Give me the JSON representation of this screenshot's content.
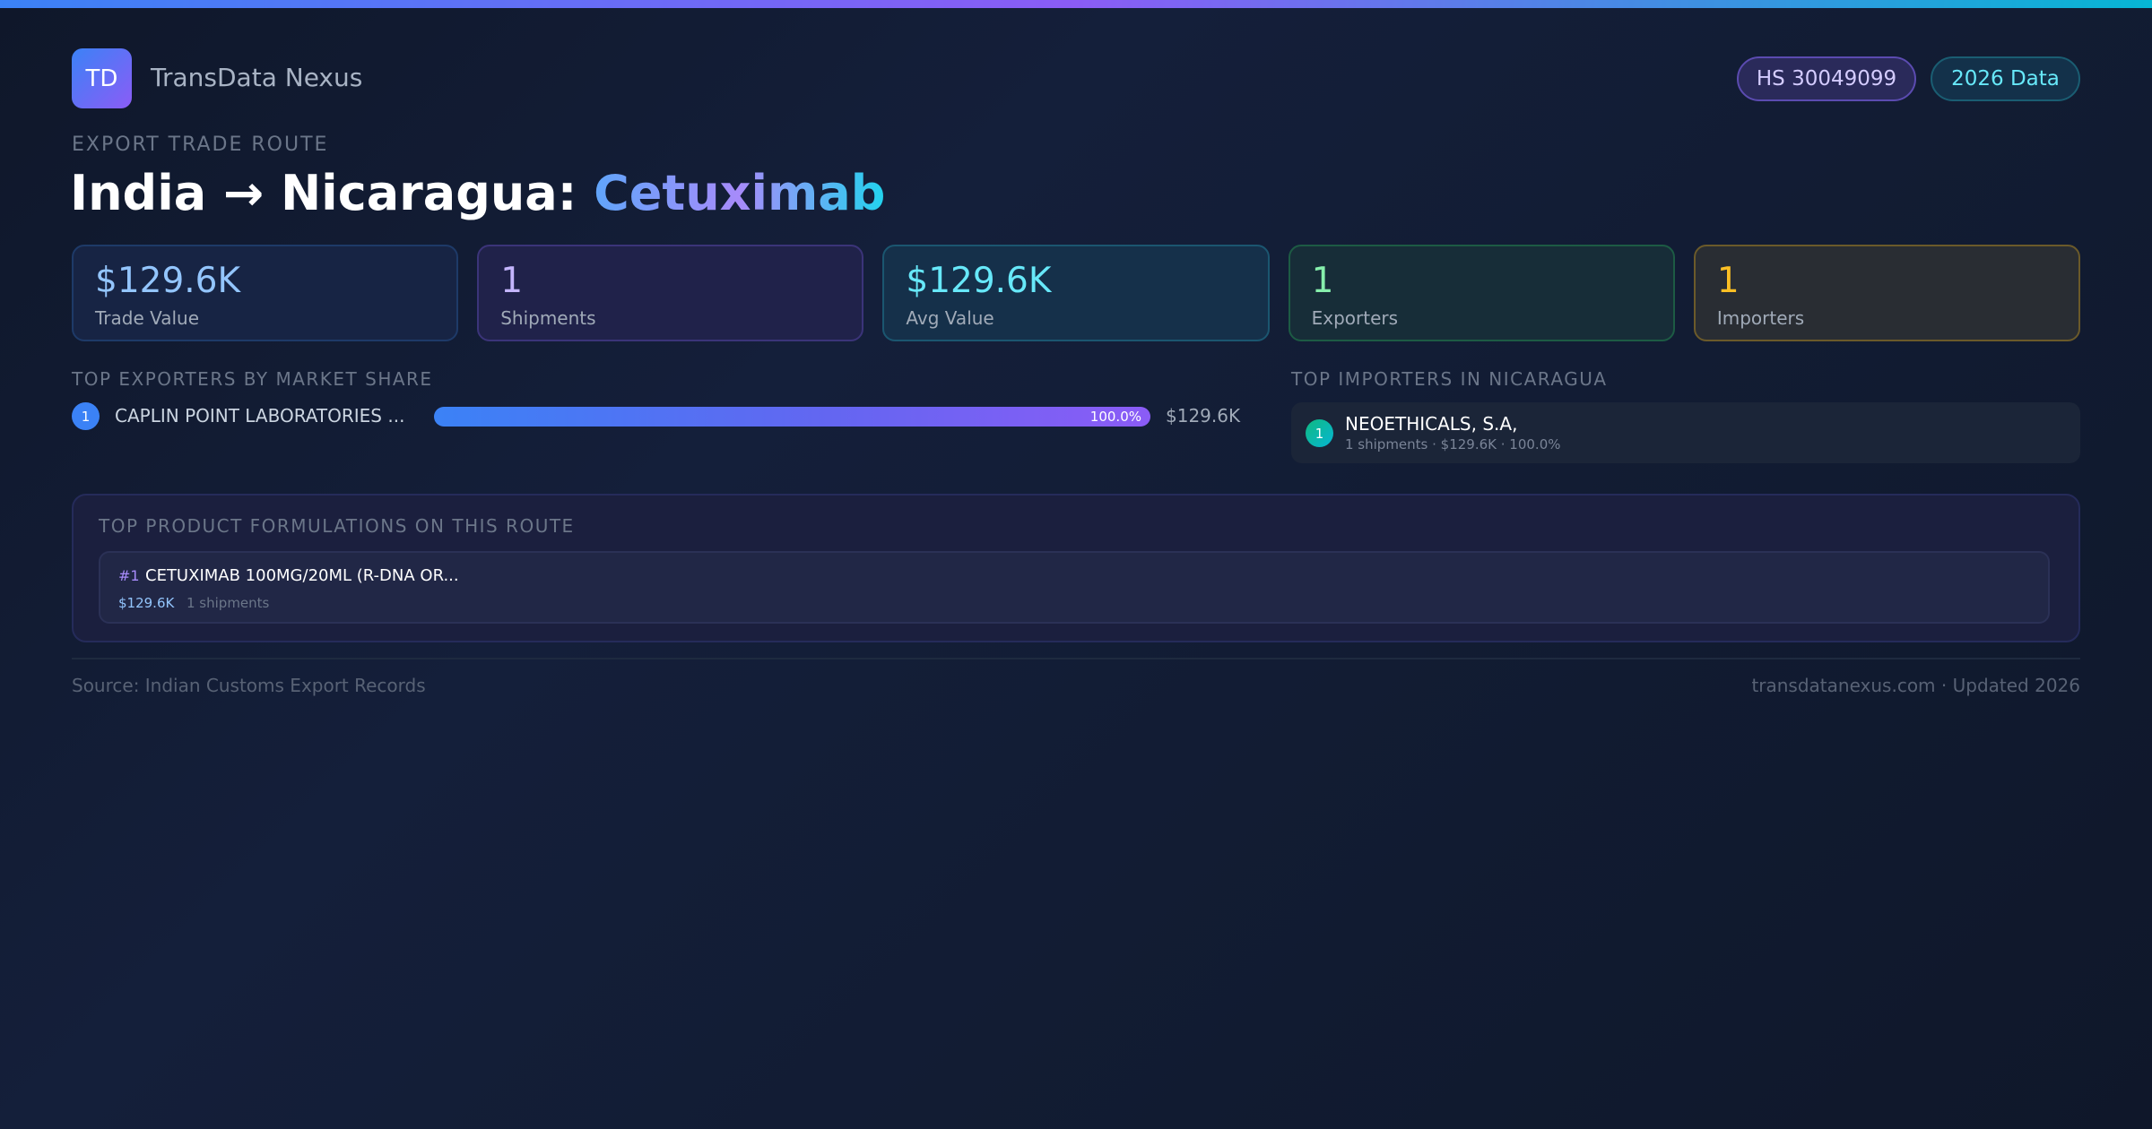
{
  "header": {
    "logo_text": "TD",
    "brand": "TransData Nexus",
    "badges": {
      "hs": "HS 30049099",
      "year": "2026 Data"
    }
  },
  "route": {
    "kicker": "EXPORT TRADE ROUTE",
    "title_prefix": "India → Nicaragua: ",
    "title_product": "Cetuximab"
  },
  "stats": [
    {
      "value": "$129.6K",
      "label": "Trade Value"
    },
    {
      "value": "1",
      "label": "Shipments"
    },
    {
      "value": "$129.6K",
      "label": "Avg Value"
    },
    {
      "value": "1",
      "label": "Exporters"
    },
    {
      "value": "1",
      "label": "Importers"
    }
  ],
  "exporters": {
    "title": "TOP EXPORTERS BY MARKET SHARE",
    "items": [
      {
        "rank": "1",
        "name": "CAPLIN POINT LABORATORIES ...",
        "share_pct": 100.0,
        "share_label": "100.0%",
        "value": "$129.6K"
      }
    ]
  },
  "importers": {
    "title": "TOP IMPORTERS IN NICARAGUA",
    "items": [
      {
        "rank": "1",
        "name": "NEOETHICALS, S.A,",
        "details": "1 shipments · $129.6K · 100.0%"
      }
    ]
  },
  "products": {
    "title": "TOP PRODUCT FORMULATIONS ON THIS ROUTE",
    "items": [
      {
        "rank": "#1",
        "name": "CETUXIMAB 100MG/20ML (R-DNA OR...",
        "value": "$129.6K",
        "shipments": "1 shipments"
      }
    ]
  },
  "footer": {
    "source": "Source: Indian Customs Export Records",
    "site": "transdatanexus.com · Updated 2026"
  },
  "colors": {
    "accent_blue": "#3b82f6",
    "accent_purple": "#8b5cf6",
    "accent_cyan": "#06b6d4",
    "importer_badge": "#14b8a6"
  }
}
